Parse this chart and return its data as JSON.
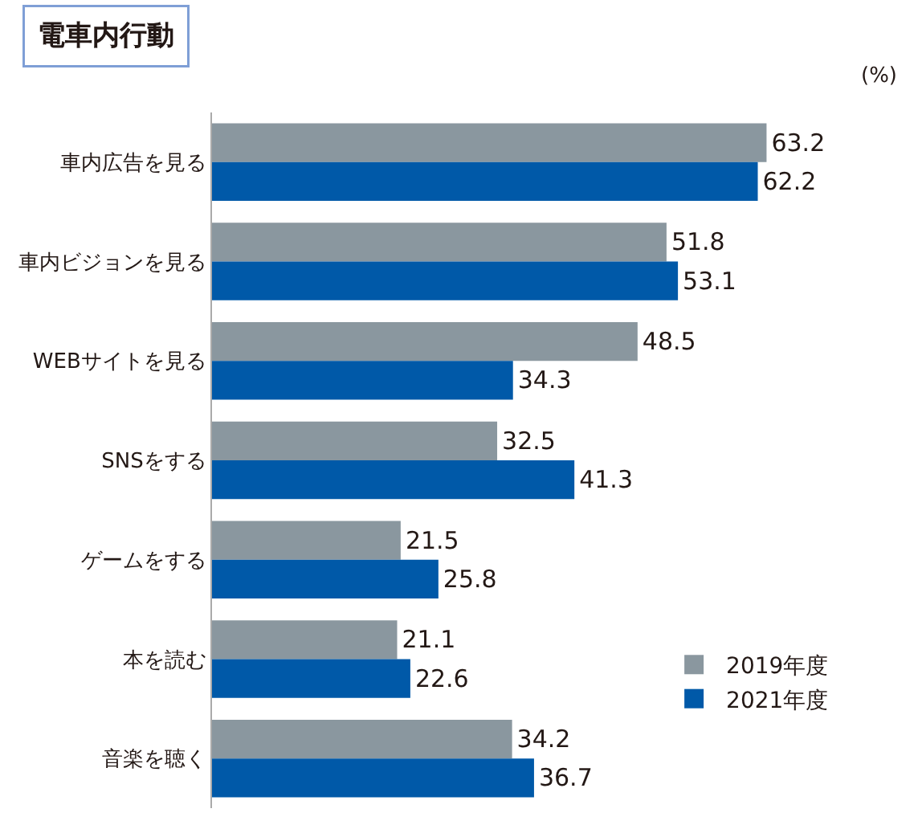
{
  "chart_data": {
    "type": "bar",
    "orientation": "horizontal",
    "title": "電車内行動",
    "annotations": [
      "(%)"
    ],
    "categories": [
      "車内広告を見る",
      "車内ビジョンを見る",
      "WEBサイトを見る",
      "SNSをする",
      "ゲームをする",
      "本を読む",
      "音楽を聴く"
    ],
    "series": [
      {
        "name": "2019年度",
        "color": "#8a979f",
        "values": [
          63.2,
          51.8,
          48.5,
          32.5,
          21.5,
          21.1,
          34.2
        ]
      },
      {
        "name": "2021年度",
        "color": "#0059a8",
        "values": [
          62.2,
          53.1,
          34.3,
          41.3,
          25.8,
          22.6,
          36.7
        ]
      }
    ],
    "data_labels": true,
    "legend": "bottom right"
  }
}
